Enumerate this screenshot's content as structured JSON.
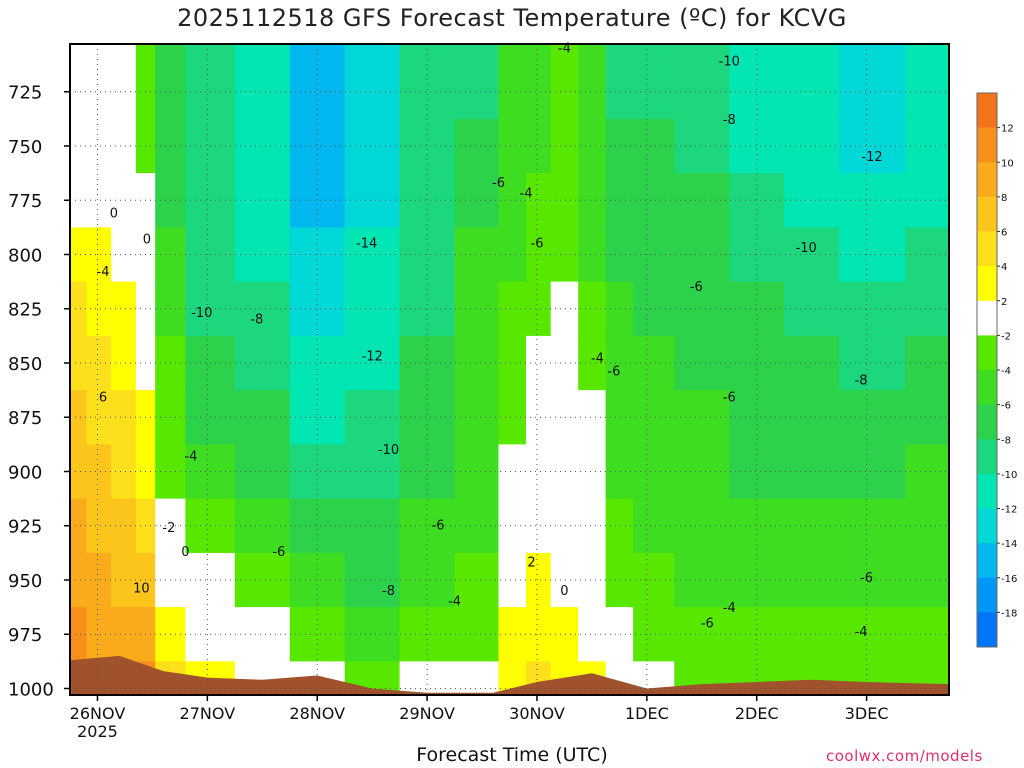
{
  "title": "2025112518 GFS Forecast Temperature (ºC) for KCVG",
  "credit": "coolwx.com/models",
  "chart_data": {
    "type": "heatmap",
    "title": "2025112518 GFS Forecast Temperature (ºC) for KCVG",
    "xlabel": "Forecast Time (UTC)",
    "ylabel": "",
    "x_ticks": [
      {
        "label": "26NOV",
        "sub": "2025",
        "day": 26
      },
      {
        "label": "27NOV",
        "day": 27
      },
      {
        "label": "28NOV",
        "day": 28
      },
      {
        "label": "29NOV",
        "day": 29
      },
      {
        "label": "30NOV",
        "day": 30
      },
      {
        "label": "1DEC",
        "day": 31
      },
      {
        "label": "2DEC",
        "day": 32
      },
      {
        "label": "3DEC",
        "day": 33
      }
    ],
    "x_range_days": [
      25.75,
      33.75
    ],
    "y_ticks": [
      725,
      750,
      775,
      800,
      825,
      850,
      875,
      900,
      925,
      950,
      975,
      1000
    ],
    "ylim": [
      703,
      1003
    ],
    "colorbar": {
      "labels": [
        "12",
        "10",
        "8",
        "6",
        "4",
        "2",
        "-2",
        "-4",
        "-6",
        "-8",
        "-10",
        "-12",
        "-14",
        "-16",
        "-18"
      ],
      "colors": [
        "#f2731c",
        "#f6901b",
        "#f9ab1c",
        "#fbc51c",
        "#fde01c",
        "#ffff00",
        "#ffffff",
        "#58e800",
        "#3fdd22",
        "#2cd24a",
        "#1cd77e",
        "#00e6b2",
        "#00d8d8",
        "#00b7f0",
        "#0096f5",
        "#0075f5"
      ]
    },
    "series": [
      {
        "time": 25.8,
        "values": [
          -2,
          -2,
          0,
          2,
          4,
          5,
          6,
          7,
          8,
          9,
          10,
          12
        ]
      },
      {
        "time": 26.0,
        "values": [
          -2,
          -1,
          0,
          2,
          3,
          4,
          5,
          6,
          7,
          8,
          9,
          10
        ]
      },
      {
        "time": 26.25,
        "values": [
          -2,
          -1,
          0,
          1,
          2,
          3,
          4,
          5,
          6,
          7,
          8,
          9
        ]
      },
      {
        "time": 26.45,
        "values": [
          -4,
          -3,
          -2,
          -1,
          0,
          1,
          2,
          3,
          4,
          6,
          8,
          10
        ]
      },
      {
        "time": 26.6,
        "values": [
          -8,
          -8,
          -7,
          -6,
          -5,
          -4,
          -4,
          -3,
          -2,
          0,
          2,
          4
        ]
      },
      {
        "time": 27.0,
        "values": [
          -9,
          -9,
          -9,
          -9,
          -9,
          -8,
          -7,
          -5,
          -3,
          -1,
          1,
          3
        ]
      },
      {
        "time": 27.5,
        "values": [
          -11,
          -12,
          -12,
          -11,
          -10,
          -9,
          -8,
          -7,
          -6,
          -4,
          -2,
          0
        ]
      },
      {
        "time": 28.0,
        "values": [
          -16,
          -15,
          -15,
          -14,
          -13,
          -12,
          -11,
          -9,
          -7,
          -5,
          -3,
          -1
        ]
      },
      {
        "time": 28.5,
        "values": [
          -14,
          -14,
          -13,
          -12,
          -12,
          -11,
          -10,
          -9,
          -8,
          -7,
          -5,
          -3
        ]
      },
      {
        "time": 29.0,
        "values": [
          -10,
          -10,
          -9,
          -9,
          -9,
          -8,
          -8,
          -7,
          -6,
          -5,
          -4,
          -2
        ]
      },
      {
        "time": 29.5,
        "values": [
          -9,
          -8,
          -7,
          -6,
          -6,
          -6,
          -6,
          -5,
          -5,
          -4,
          -3,
          -2
        ]
      },
      {
        "time": 29.8,
        "values": [
          -6,
          -6,
          -5,
          -5,
          -4,
          -3,
          -3,
          -2,
          -1,
          1,
          2,
          3
        ]
      },
      {
        "time": 30.0,
        "values": [
          -5,
          -5,
          -4,
          -4,
          -3,
          -2,
          -1,
          0,
          1,
          2,
          3,
          4
        ]
      },
      {
        "time": 30.25,
        "values": [
          -4,
          -4,
          -4,
          -3,
          -2,
          -1,
          0,
          0,
          0,
          1,
          2,
          3
        ]
      },
      {
        "time": 30.5,
        "values": [
          -6,
          -6,
          -6,
          -5,
          -4,
          -3,
          -2,
          -1,
          0,
          0,
          1,
          2
        ]
      },
      {
        "time": 30.75,
        "values": [
          -9,
          -8,
          -8,
          -7,
          -6,
          -6,
          -5,
          -5,
          -4,
          -3,
          -2,
          -1
        ]
      },
      {
        "time": 31.0,
        "values": [
          -9,
          -8,
          -8,
          -7,
          -7,
          -6,
          -6,
          -5,
          -5,
          -4,
          -3,
          -2
        ]
      },
      {
        "time": 31.5,
        "values": [
          -9,
          -9,
          -8,
          -7,
          -7,
          -7,
          -6,
          -6,
          -6,
          -5,
          -4,
          -3
        ]
      },
      {
        "time": 32.0,
        "values": [
          -12,
          -11,
          -10,
          -9,
          -8,
          -8,
          -7,
          -7,
          -6,
          -5,
          -4,
          -3
        ]
      },
      {
        "time": 32.5,
        "values": [
          -12,
          -12,
          -11,
          -10,
          -9,
          -8,
          -7,
          -7,
          -6,
          -5,
          -4,
          -3
        ]
      },
      {
        "time": 33.0,
        "values": [
          -13,
          -13,
          -12,
          -11,
          -10,
          -9,
          -8,
          -7,
          -6,
          -5,
          -4,
          -3
        ]
      },
      {
        "time": 33.7,
        "values": [
          -12,
          -12,
          -11,
          -10,
          -9,
          -8,
          -7,
          -6,
          -5,
          -5,
          -4,
          -3
        ]
      }
    ],
    "surface": [
      {
        "time": 25.75,
        "pressure": 987
      },
      {
        "time": 26.2,
        "pressure": 985
      },
      {
        "time": 26.6,
        "pressure": 992
      },
      {
        "time": 27.0,
        "pressure": 995
      },
      {
        "time": 27.5,
        "pressure": 996
      },
      {
        "time": 28.0,
        "pressure": 994
      },
      {
        "time": 28.5,
        "pressure": 1000
      },
      {
        "time": 29.0,
        "pressure": 1002
      },
      {
        "time": 29.6,
        "pressure": 1002
      },
      {
        "time": 30.0,
        "pressure": 997
      },
      {
        "time": 30.5,
        "pressure": 993
      },
      {
        "time": 31.0,
        "pressure": 1000
      },
      {
        "time": 31.5,
        "pressure": 998
      },
      {
        "time": 32.0,
        "pressure": 997
      },
      {
        "time": 32.5,
        "pressure": 996
      },
      {
        "time": 33.0,
        "pressure": 997
      },
      {
        "time": 33.75,
        "pressure": 998
      }
    ],
    "contour_labels": [
      {
        "text": "0",
        "day": 26.15,
        "p": 781
      },
      {
        "text": "0",
        "day": 26.45,
        "p": 793
      },
      {
        "text": "-4",
        "day": 26.05,
        "p": 808
      },
      {
        "text": "6",
        "day": 26.05,
        "p": 866
      },
      {
        "text": "10",
        "day": 26.4,
        "p": 954
      },
      {
        "text": "-2",
        "day": 26.65,
        "p": 926
      },
      {
        "text": "0",
        "day": 26.8,
        "p": 937
      },
      {
        "text": "-4",
        "day": 26.85,
        "p": 893
      },
      {
        "text": "-10",
        "day": 26.95,
        "p": 827
      },
      {
        "text": "-8",
        "day": 27.45,
        "p": 830
      },
      {
        "text": "-6",
        "day": 27.65,
        "p": 937
      },
      {
        "text": "-14",
        "day": 28.45,
        "p": 795
      },
      {
        "text": "-12",
        "day": 28.5,
        "p": 847
      },
      {
        "text": "-10",
        "day": 28.65,
        "p": 890
      },
      {
        "text": "-8",
        "day": 28.65,
        "p": 955
      },
      {
        "text": "-6",
        "day": 29.1,
        "p": 925
      },
      {
        "text": "-4",
        "day": 29.25,
        "p": 960
      },
      {
        "text": "-6",
        "day": 29.65,
        "p": 767
      },
      {
        "text": "-4",
        "day": 29.9,
        "p": 772
      },
      {
        "text": "-6",
        "day": 30.0,
        "p": 795
      },
      {
        "text": "2",
        "day": 29.95,
        "p": 942
      },
      {
        "text": "0",
        "day": 30.25,
        "p": 955
      },
      {
        "text": "-4",
        "day": 30.25,
        "p": 705
      },
      {
        "text": "-4",
        "day": 30.55,
        "p": 848
      },
      {
        "text": "-6",
        "day": 30.7,
        "p": 854
      },
      {
        "text": "-6",
        "day": 31.45,
        "p": 815
      },
      {
        "text": "-6",
        "day": 31.75,
        "p": 866
      },
      {
        "text": "-6",
        "day": 31.55,
        "p": 970
      },
      {
        "text": "-4",
        "day": 31.75,
        "p": 963
      },
      {
        "text": "-10",
        "day": 31.75,
        "p": 711
      },
      {
        "text": "-8",
        "day": 31.75,
        "p": 738
      },
      {
        "text": "-10",
        "day": 32.45,
        "p": 797
      },
      {
        "text": "-12",
        "day": 33.05,
        "p": 755
      },
      {
        "text": "-8",
        "day": 32.95,
        "p": 858
      },
      {
        "text": "-6",
        "day": 33.0,
        "p": 949
      },
      {
        "text": "-4",
        "day": 32.95,
        "p": 974
      }
    ]
  }
}
